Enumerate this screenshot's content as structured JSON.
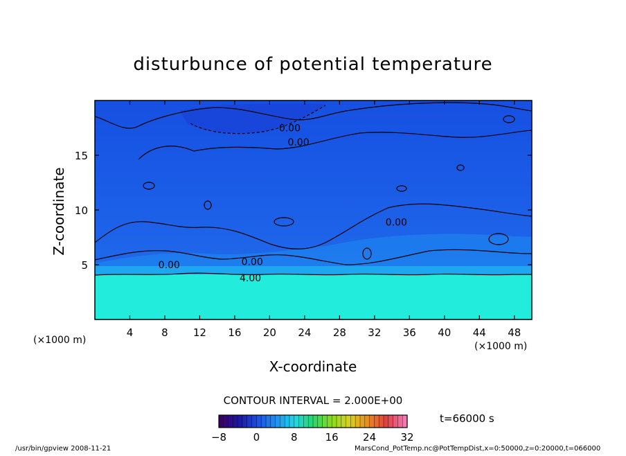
{
  "chart_data": {
    "type": "heatmap",
    "title": "disturbunce of potential temperature",
    "xlabel": "X-coordinate",
    "ylabel": "Z-coordinate",
    "x_unit_left": "(×1000 m)",
    "x_unit_right": "(×1000 m)",
    "xlim": [
      0,
      50
    ],
    "ylim": [
      0,
      20
    ],
    "x_ticks": [
      4,
      8,
      12,
      16,
      20,
      24,
      28,
      32,
      36,
      40,
      44,
      48
    ],
    "y_ticks": [
      5,
      10,
      15
    ],
    "contour_interval_text": "CONTOUR INTERVAL = 2.000E+00",
    "time_text": "t=66000 s",
    "colorbar": {
      "min": -8,
      "max": 32,
      "ticks": [
        -8,
        0,
        8,
        16,
        24,
        32
      ],
      "colors": [
        "#3a006a",
        "#1a1aa0",
        "#1e50e0",
        "#1e90f0",
        "#22d8e6",
        "#2ad66a",
        "#8adc20",
        "#d8d020",
        "#e88a20",
        "#e04040",
        "#f07ab4"
      ]
    },
    "contour_labels": [
      {
        "text": "0.00",
        "x": 22.3,
        "z": 17.5
      },
      {
        "text": "0.00",
        "x": 23.3,
        "z": 16.2
      },
      {
        "text": "0.00",
        "x": 8.5,
        "z": 5.0
      },
      {
        "text": "0.00",
        "x": 18.0,
        "z": 5.3
      },
      {
        "text": "4.00",
        "x": 17.8,
        "z": 3.8
      },
      {
        "text": "0.00",
        "x": 34.5,
        "z": 8.9
      }
    ],
    "regions": {
      "surface_layer": {
        "z_top": 4.2,
        "value": 6,
        "color": "#22f0e0"
      },
      "stable_layer_1": {
        "z_top": 5.0,
        "value": 2,
        "color": "#1ea6f0"
      },
      "stable_layer_2": {
        "z_top": 5.6,
        "value": 0,
        "color": "#1e70ee"
      },
      "interior": {
        "value": -1,
        "color": "#1a5ae6"
      },
      "upper_cold_pool": {
        "x_range": [
          10,
          26
        ],
        "z_range": [
          16.5,
          19.5
        ],
        "value": -3,
        "color": "#143ed8"
      }
    }
  },
  "footer": {
    "left": "/usr/bin/gpview   2008-11-21",
    "right": "MarsCond_PotTemp.nc@PotTempDist,x=0:50000,z=0:20000,t=066000"
  }
}
